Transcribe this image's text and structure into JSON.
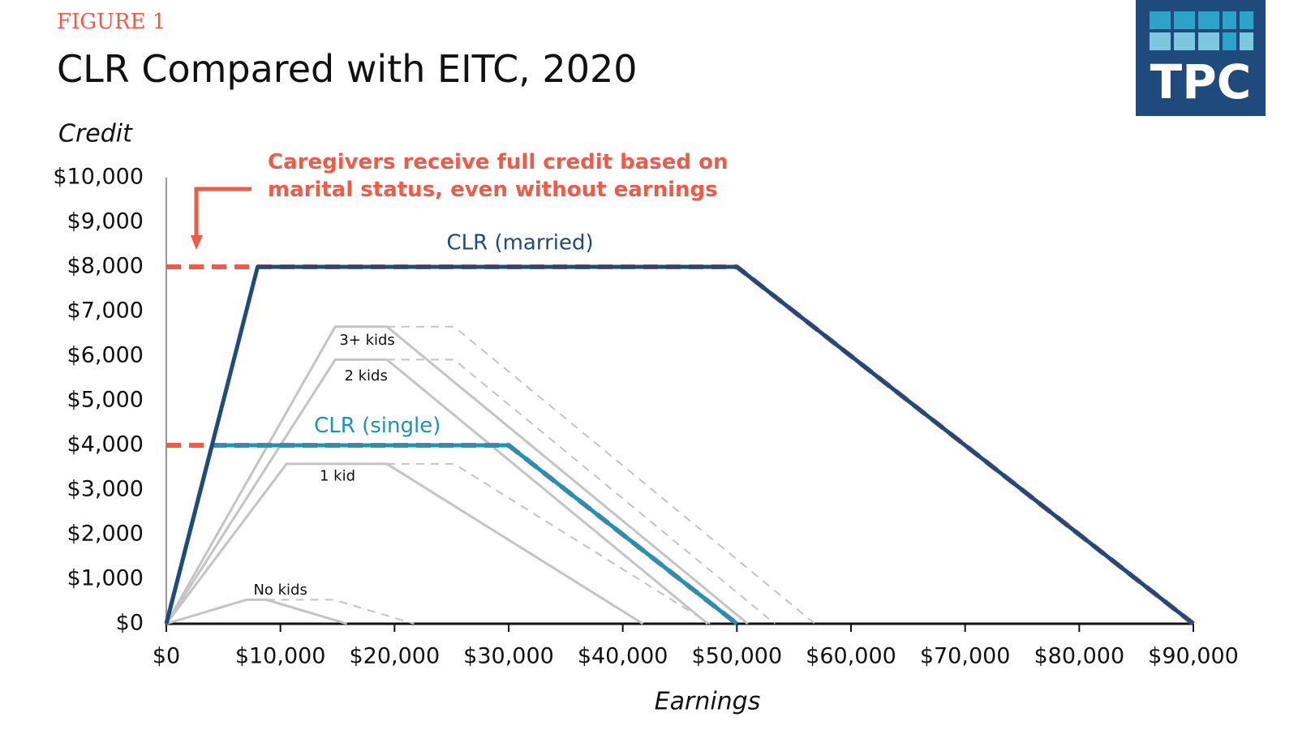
{
  "header": {
    "figure": "FIGURE 1",
    "logo": "TPC"
  },
  "chart_data": {
    "type": "line",
    "title": "CLR Compared with EITC, 2020",
    "y_label": "Credit",
    "x_label": "Earnings",
    "annotation": "Caregivers receive full credit based on marital status, even without earnings",
    "annotation_color": "#f05a46",
    "xlim": [
      0,
      90000
    ],
    "ylim": [
      0,
      10000
    ],
    "xticks": [
      {
        "value": 0,
        "label": "$0"
      },
      {
        "value": 10000,
        "label": "$10,000"
      },
      {
        "value": 20000,
        "label": "$20,000"
      },
      {
        "value": 30000,
        "label": "$30,000"
      },
      {
        "value": 40000,
        "label": "$40,000"
      },
      {
        "value": 50000,
        "label": "$50,000"
      },
      {
        "value": 60000,
        "label": "$60,000"
      },
      {
        "value": 70000,
        "label": "$70,000"
      },
      {
        "value": 80000,
        "label": "$80,000"
      },
      {
        "value": 90000,
        "label": "$90,000"
      }
    ],
    "yticks": [
      {
        "value": 0,
        "label": "$0"
      },
      {
        "value": 1000,
        "label": "$1,000"
      },
      {
        "value": 2000,
        "label": "$2,000"
      },
      {
        "value": 3000,
        "label": "$3,000"
      },
      {
        "value": 4000,
        "label": "$4,000"
      },
      {
        "value": 5000,
        "label": "$5,000"
      },
      {
        "value": 6000,
        "label": "$6,000"
      },
      {
        "value": 7000,
        "label": "$7,000"
      },
      {
        "value": 8000,
        "label": "$8,000"
      },
      {
        "value": 9000,
        "label": "$9,000"
      },
      {
        "value": 10000,
        "label": "$10,000"
      }
    ],
    "series": [
      {
        "name": "No kids",
        "color": "#c4c4c4",
        "style": "solid",
        "line_width": 3,
        "x": [
          0,
          7030,
          8790,
          15820
        ],
        "values": [
          0,
          538,
          538,
          0
        ]
      },
      {
        "color": "#c4c4c4",
        "style": "dashed",
        "line_width": 2,
        "x": [
          8790,
          14680,
          21710
        ],
        "values": [
          538,
          538,
          0
        ]
      },
      {
        "name": "1 kid",
        "color": "#c4c4c4",
        "style": "solid",
        "line_width": 3,
        "x": [
          0,
          10540,
          19330,
          41756
        ],
        "values": [
          0,
          3584,
          3584,
          0
        ]
      },
      {
        "color": "#c4c4c4",
        "style": "dashed",
        "line_width": 2,
        "x": [
          19330,
          25220,
          47646
        ],
        "values": [
          3584,
          3584,
          0
        ]
      },
      {
        "name": "2 kids",
        "color": "#c4c4c4",
        "style": "solid",
        "line_width": 3,
        "x": [
          0,
          14800,
          19330,
          47440
        ],
        "values": [
          0,
          5920,
          5920,
          0
        ]
      },
      {
        "color": "#c4c4c4",
        "style": "dashed",
        "line_width": 2,
        "x": [
          19330,
          25220,
          53330
        ],
        "values": [
          5920,
          5920,
          0
        ]
      },
      {
        "name": "3+ kids",
        "color": "#c4c4c4",
        "style": "solid",
        "line_width": 3,
        "x": [
          0,
          14800,
          19330,
          50954
        ],
        "values": [
          0,
          6660,
          6660,
          0
        ]
      },
      {
        "color": "#c4c4c4",
        "style": "dashed",
        "line_width": 2,
        "x": [
          19330,
          25220,
          56844
        ],
        "values": [
          6660,
          6660,
          0
        ]
      },
      {
        "color": "#f05a46",
        "style": "dashed",
        "line_width": 6,
        "x": [
          0,
          30000,
          50000
        ],
        "values": [
          4000,
          4000,
          0
        ]
      },
      {
        "color": "#f05a46",
        "style": "dashed",
        "line_width": 6,
        "x": [
          0,
          50000,
          90000
        ],
        "values": [
          8000,
          8000,
          0
        ]
      },
      {
        "name": "CLR (single)",
        "color": "#1c94b8",
        "style": "solid",
        "line_width": 5,
        "x": [
          0,
          4000,
          30000,
          50000
        ],
        "values": [
          0,
          4000,
          4000,
          0
        ]
      },
      {
        "name": "CLR (married)",
        "color": "#1f4a7c",
        "style": "solid",
        "line_width": 5,
        "x": [
          0,
          8000,
          50000,
          90000
        ],
        "values": [
          0,
          8000,
          8000,
          0
        ]
      }
    ]
  }
}
